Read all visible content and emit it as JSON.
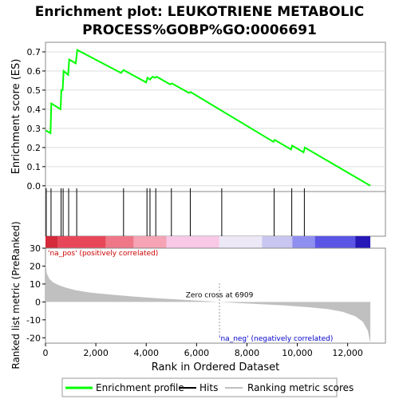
{
  "chart_data": {
    "type": "line",
    "title_lines": [
      "Enrichment plot: LEUKOTRIENE METABOLIC",
      "PROCESS%GOBP%GO:0006691"
    ],
    "es_panel": {
      "ylabel": "Enrichment score (ES)",
      "ylim": [
        -0.03,
        0.75
      ],
      "yticks": [
        0.0,
        0.1,
        0.2,
        0.3,
        0.4,
        0.5,
        0.6,
        0.7
      ],
      "ytick_labels": [
        "0.0",
        "0.1",
        "0.2",
        "0.3",
        "0.4",
        "0.5",
        "0.6",
        "0.7"
      ],
      "series": [
        {
          "name": "Enrichment profile",
          "color": "#00ff00",
          "x": [
            0,
            200,
            230,
            600,
            630,
            680,
            720,
            900,
            940,
            1200,
            1260,
            3000,
            3100,
            4000,
            4050,
            4150,
            4250,
            4350,
            4420,
            4950,
            5020,
            5700,
            5760,
            9050,
            9100,
            9750,
            9800,
            10250,
            10300,
            12900
          ],
          "y": [
            0.29,
            0.275,
            0.43,
            0.4,
            0.5,
            0.5,
            0.6,
            0.58,
            0.66,
            0.64,
            0.71,
            0.59,
            0.605,
            0.54,
            0.565,
            0.555,
            0.57,
            0.565,
            0.57,
            0.53,
            0.535,
            0.485,
            0.49,
            0.23,
            0.24,
            0.19,
            0.21,
            0.175,
            0.2,
            0.0
          ]
        }
      ]
    },
    "hits": {
      "name": "Hits",
      "positions": [
        30,
        220,
        620,
        700,
        920,
        1240,
        3100,
        4030,
        4150,
        4380,
        5000,
        5750,
        7000,
        9080,
        9780,
        10280
      ]
    },
    "rank_heatmap": {
      "bands": [
        {
          "from": 0,
          "to": 500,
          "color": "#d42a3a"
        },
        {
          "from": 500,
          "to": 2400,
          "color": "#e8475a"
        },
        {
          "from": 2400,
          "to": 3500,
          "color": "#ef7788"
        },
        {
          "from": 3500,
          "to": 4800,
          "color": "#f5a3b5"
        },
        {
          "from": 4800,
          "to": 6900,
          "color": "#f8c8e6"
        },
        {
          "from": 6900,
          "to": 8600,
          "color": "#ece8f6"
        },
        {
          "from": 8600,
          "to": 9800,
          "color": "#c8c6f0"
        },
        {
          "from": 9800,
          "to": 10700,
          "color": "#8f8ff0"
        },
        {
          "from": 10700,
          "to": 12300,
          "color": "#5b55e6"
        },
        {
          "from": 12300,
          "to": 12900,
          "color": "#2617b8"
        }
      ]
    },
    "metric_panel": {
      "ylabel": "Ranked list metric (PreRanked)",
      "xlabel": "Rank in Ordered Dataset",
      "ylim": [
        -23,
        30
      ],
      "yticks": [
        -20,
        -10,
        0,
        10,
        20,
        30
      ],
      "ytick_labels": [
        "-20",
        "-10",
        "0",
        "10",
        "20",
        "30"
      ],
      "xlim": [
        0,
        13500
      ],
      "xticks": [
        0,
        2000,
        4000,
        6000,
        8000,
        10000,
        12000
      ],
      "xtick_labels": [
        "0",
        "2,000",
        "4,000",
        "6,000",
        "8,000",
        "10,000",
        "12,000"
      ],
      "x": [
        0,
        50,
        150,
        300,
        500,
        800,
        1200,
        1800,
        2500,
        3500,
        4500,
        5500,
        6500,
        6909,
        7500,
        8500,
        9500,
        10500,
        11200,
        11800,
        12300,
        12600,
        12800,
        12900
      ],
      "y": [
        22,
        16,
        13,
        11,
        9.5,
        8,
        6.5,
        5.2,
        4.2,
        3.0,
        2.0,
        1.2,
        0.4,
        0,
        -0.5,
        -1.2,
        -2.0,
        -3.0,
        -4.0,
        -5.5,
        -8,
        -11,
        -16,
        -23
      ],
      "color": "#c0c0c0",
      "zero_cross_text": "Zero cross at 6909",
      "zero_cross_x": 6909,
      "pos_label": "'na_pos' (positively correlated)",
      "neg_label": "'na_neg' (negatively correlated)",
      "pos_color": "#cc0000",
      "neg_color": "#0000cc"
    },
    "legend": [
      {
        "label": "Enrichment profile",
        "color": "#00ff00"
      },
      {
        "label": "Hits",
        "color": "#000000"
      },
      {
        "label": "Ranking metric scores",
        "color": "#c0c0c0"
      }
    ]
  }
}
